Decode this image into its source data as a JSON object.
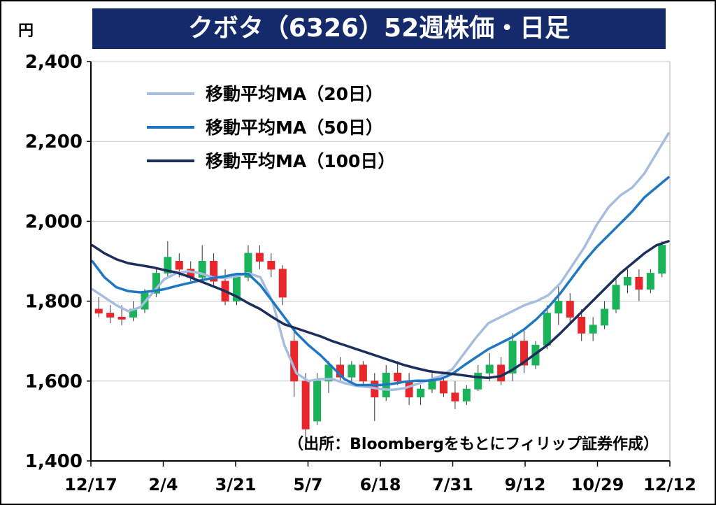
{
  "title": "クボタ（6326）52週株価・日足",
  "unit": "円",
  "source_note": "（出所：Bloombergをもとにフィリップ証券作成）",
  "colors": {
    "title_bg": "#142a6a",
    "up": "#1bb35a",
    "down": "#e8262b",
    "ma20": "#a6bddf",
    "ma50": "#1f77c4",
    "ma100": "#1c2f5c",
    "grid": "#c8c8c8"
  },
  "chart_data": {
    "type": "line",
    "title": "クボタ（6326）52週株価・日足",
    "ylabel": "円",
    "ylim": [
      1400,
      2400
    ],
    "yticks": [
      1400,
      1600,
      1800,
      2000,
      2200,
      2400
    ],
    "ytick_labels": [
      "1,400",
      "1,600",
      "1,800",
      "2,000",
      "2,200",
      "2,400"
    ],
    "xticks": [
      "12/17",
      "2/4",
      "3/21",
      "5/7",
      "6/18",
      "7/31",
      "9/12",
      "10/29",
      "12/12"
    ],
    "grid": true,
    "legend_position": "top-left",
    "series": [
      {
        "name": "移動平均MA（20日）",
        "color": "#a6bddf",
        "values": [
          1830,
          1810,
          1790,
          1775,
          1785,
          1820,
          1855,
          1870,
          1875,
          1870,
          1860,
          1858,
          1862,
          1870,
          1860,
          1800,
          1690,
          1620,
          1600,
          1605,
          1605,
          1595,
          1588,
          1585,
          1580,
          1578,
          1582,
          1592,
          1602,
          1612,
          1630,
          1670,
          1710,
          1745,
          1760,
          1775,
          1790,
          1800,
          1815,
          1845,
          1890,
          1935,
          1990,
          2035,
          2065,
          2085,
          2120,
          2170,
          2220
        ]
      },
      {
        "name": "移動平均MA（50日）",
        "color": "#1f77c4",
        "values": [
          1900,
          1860,
          1835,
          1825,
          1822,
          1825,
          1830,
          1838,
          1845,
          1852,
          1858,
          1862,
          1868,
          1868,
          1840,
          1800,
          1760,
          1720,
          1690,
          1665,
          1635,
          1605,
          1590,
          1590,
          1590,
          1593,
          1598,
          1601,
          1601,
          1605,
          1618,
          1640,
          1660,
          1680,
          1695,
          1710,
          1730,
          1755,
          1785,
          1820,
          1860,
          1900,
          1935,
          1965,
          1995,
          2025,
          2060,
          2085,
          2110
        ]
      },
      {
        "name": "移動平均MA（100日）",
        "color": "#1c2f5c",
        "values": [
          1940,
          1920,
          1905,
          1895,
          1890,
          1885,
          1878,
          1872,
          1862,
          1850,
          1838,
          1826,
          1812,
          1795,
          1780,
          1760,
          1742,
          1732,
          1722,
          1712,
          1700,
          1690,
          1680,
          1670,
          1660,
          1650,
          1640,
          1632,
          1625,
          1621,
          1618,
          1614,
          1610,
          1608,
          1612,
          1628,
          1648,
          1670,
          1692,
          1720,
          1750,
          1780,
          1810,
          1840,
          1870,
          1895,
          1920,
          1940,
          1950
        ]
      }
    ],
    "candles": [
      {
        "o": 1780,
        "h": 1810,
        "l": 1760,
        "c": 1770
      },
      {
        "o": 1770,
        "h": 1790,
        "l": 1745,
        "c": 1760
      },
      {
        "o": 1760,
        "h": 1790,
        "l": 1740,
        "c": 1755
      },
      {
        "o": 1760,
        "h": 1800,
        "l": 1750,
        "c": 1780
      },
      {
        "o": 1780,
        "h": 1830,
        "l": 1770,
        "c": 1820
      },
      {
        "o": 1820,
        "h": 1880,
        "l": 1810,
        "c": 1870
      },
      {
        "o": 1870,
        "h": 1950,
        "l": 1860,
        "c": 1910
      },
      {
        "o": 1900,
        "h": 1920,
        "l": 1860,
        "c": 1880
      },
      {
        "o": 1880,
        "h": 1900,
        "l": 1850,
        "c": 1860
      },
      {
        "o": 1860,
        "h": 1940,
        "l": 1850,
        "c": 1900
      },
      {
        "o": 1900,
        "h": 1920,
        "l": 1840,
        "c": 1850
      },
      {
        "o": 1850,
        "h": 1880,
        "l": 1790,
        "c": 1800
      },
      {
        "o": 1800,
        "h": 1870,
        "l": 1790,
        "c": 1860
      },
      {
        "o": 1860,
        "h": 1940,
        "l": 1850,
        "c": 1920
      },
      {
        "o": 1920,
        "h": 1940,
        "l": 1880,
        "c": 1900
      },
      {
        "o": 1900,
        "h": 1920,
        "l": 1860,
        "c": 1880
      },
      {
        "o": 1880,
        "h": 1890,
        "l": 1790,
        "c": 1810
      },
      {
        "o": 1700,
        "h": 1730,
        "l": 1560,
        "c": 1600
      },
      {
        "o": 1600,
        "h": 1620,
        "l": 1440,
        "c": 1480
      },
      {
        "o": 1500,
        "h": 1620,
        "l": 1490,
        "c": 1600
      },
      {
        "o": 1600,
        "h": 1650,
        "l": 1570,
        "c": 1640
      },
      {
        "o": 1640,
        "h": 1660,
        "l": 1600,
        "c": 1610
      },
      {
        "o": 1610,
        "h": 1650,
        "l": 1590,
        "c": 1640
      },
      {
        "o": 1640,
        "h": 1650,
        "l": 1590,
        "c": 1600
      },
      {
        "o": 1600,
        "h": 1620,
        "l": 1500,
        "c": 1560
      },
      {
        "o": 1560,
        "h": 1640,
        "l": 1550,
        "c": 1620
      },
      {
        "o": 1620,
        "h": 1650,
        "l": 1590,
        "c": 1600
      },
      {
        "o": 1600,
        "h": 1620,
        "l": 1540,
        "c": 1560
      },
      {
        "o": 1560,
        "h": 1590,
        "l": 1540,
        "c": 1580
      },
      {
        "o": 1580,
        "h": 1620,
        "l": 1570,
        "c": 1600
      },
      {
        "o": 1600,
        "h": 1610,
        "l": 1560,
        "c": 1570
      },
      {
        "o": 1570,
        "h": 1600,
        "l": 1530,
        "c": 1550
      },
      {
        "o": 1550,
        "h": 1590,
        "l": 1540,
        "c": 1580
      },
      {
        "o": 1580,
        "h": 1640,
        "l": 1575,
        "c": 1620
      },
      {
        "o": 1620,
        "h": 1670,
        "l": 1600,
        "c": 1640
      },
      {
        "o": 1640,
        "h": 1660,
        "l": 1590,
        "c": 1600
      },
      {
        "o": 1620,
        "h": 1720,
        "l": 1600,
        "c": 1700
      },
      {
        "o": 1700,
        "h": 1730,
        "l": 1620,
        "c": 1640
      },
      {
        "o": 1640,
        "h": 1700,
        "l": 1630,
        "c": 1690
      },
      {
        "o": 1690,
        "h": 1790,
        "l": 1680,
        "c": 1770
      },
      {
        "o": 1770,
        "h": 1840,
        "l": 1740,
        "c": 1800
      },
      {
        "o": 1800,
        "h": 1820,
        "l": 1740,
        "c": 1760
      },
      {
        "o": 1760,
        "h": 1780,
        "l": 1700,
        "c": 1720
      },
      {
        "o": 1720,
        "h": 1760,
        "l": 1700,
        "c": 1740
      },
      {
        "o": 1740,
        "h": 1800,
        "l": 1730,
        "c": 1780
      },
      {
        "o": 1780,
        "h": 1860,
        "l": 1770,
        "c": 1840
      },
      {
        "o": 1840,
        "h": 1880,
        "l": 1820,
        "c": 1860
      },
      {
        "o": 1860,
        "h": 1880,
        "l": 1800,
        "c": 1830
      },
      {
        "o": 1830,
        "h": 1880,
        "l": 1820,
        "c": 1870
      },
      {
        "o": 1870,
        "h": 1950,
        "l": 1860,
        "c": 1940
      }
    ]
  }
}
